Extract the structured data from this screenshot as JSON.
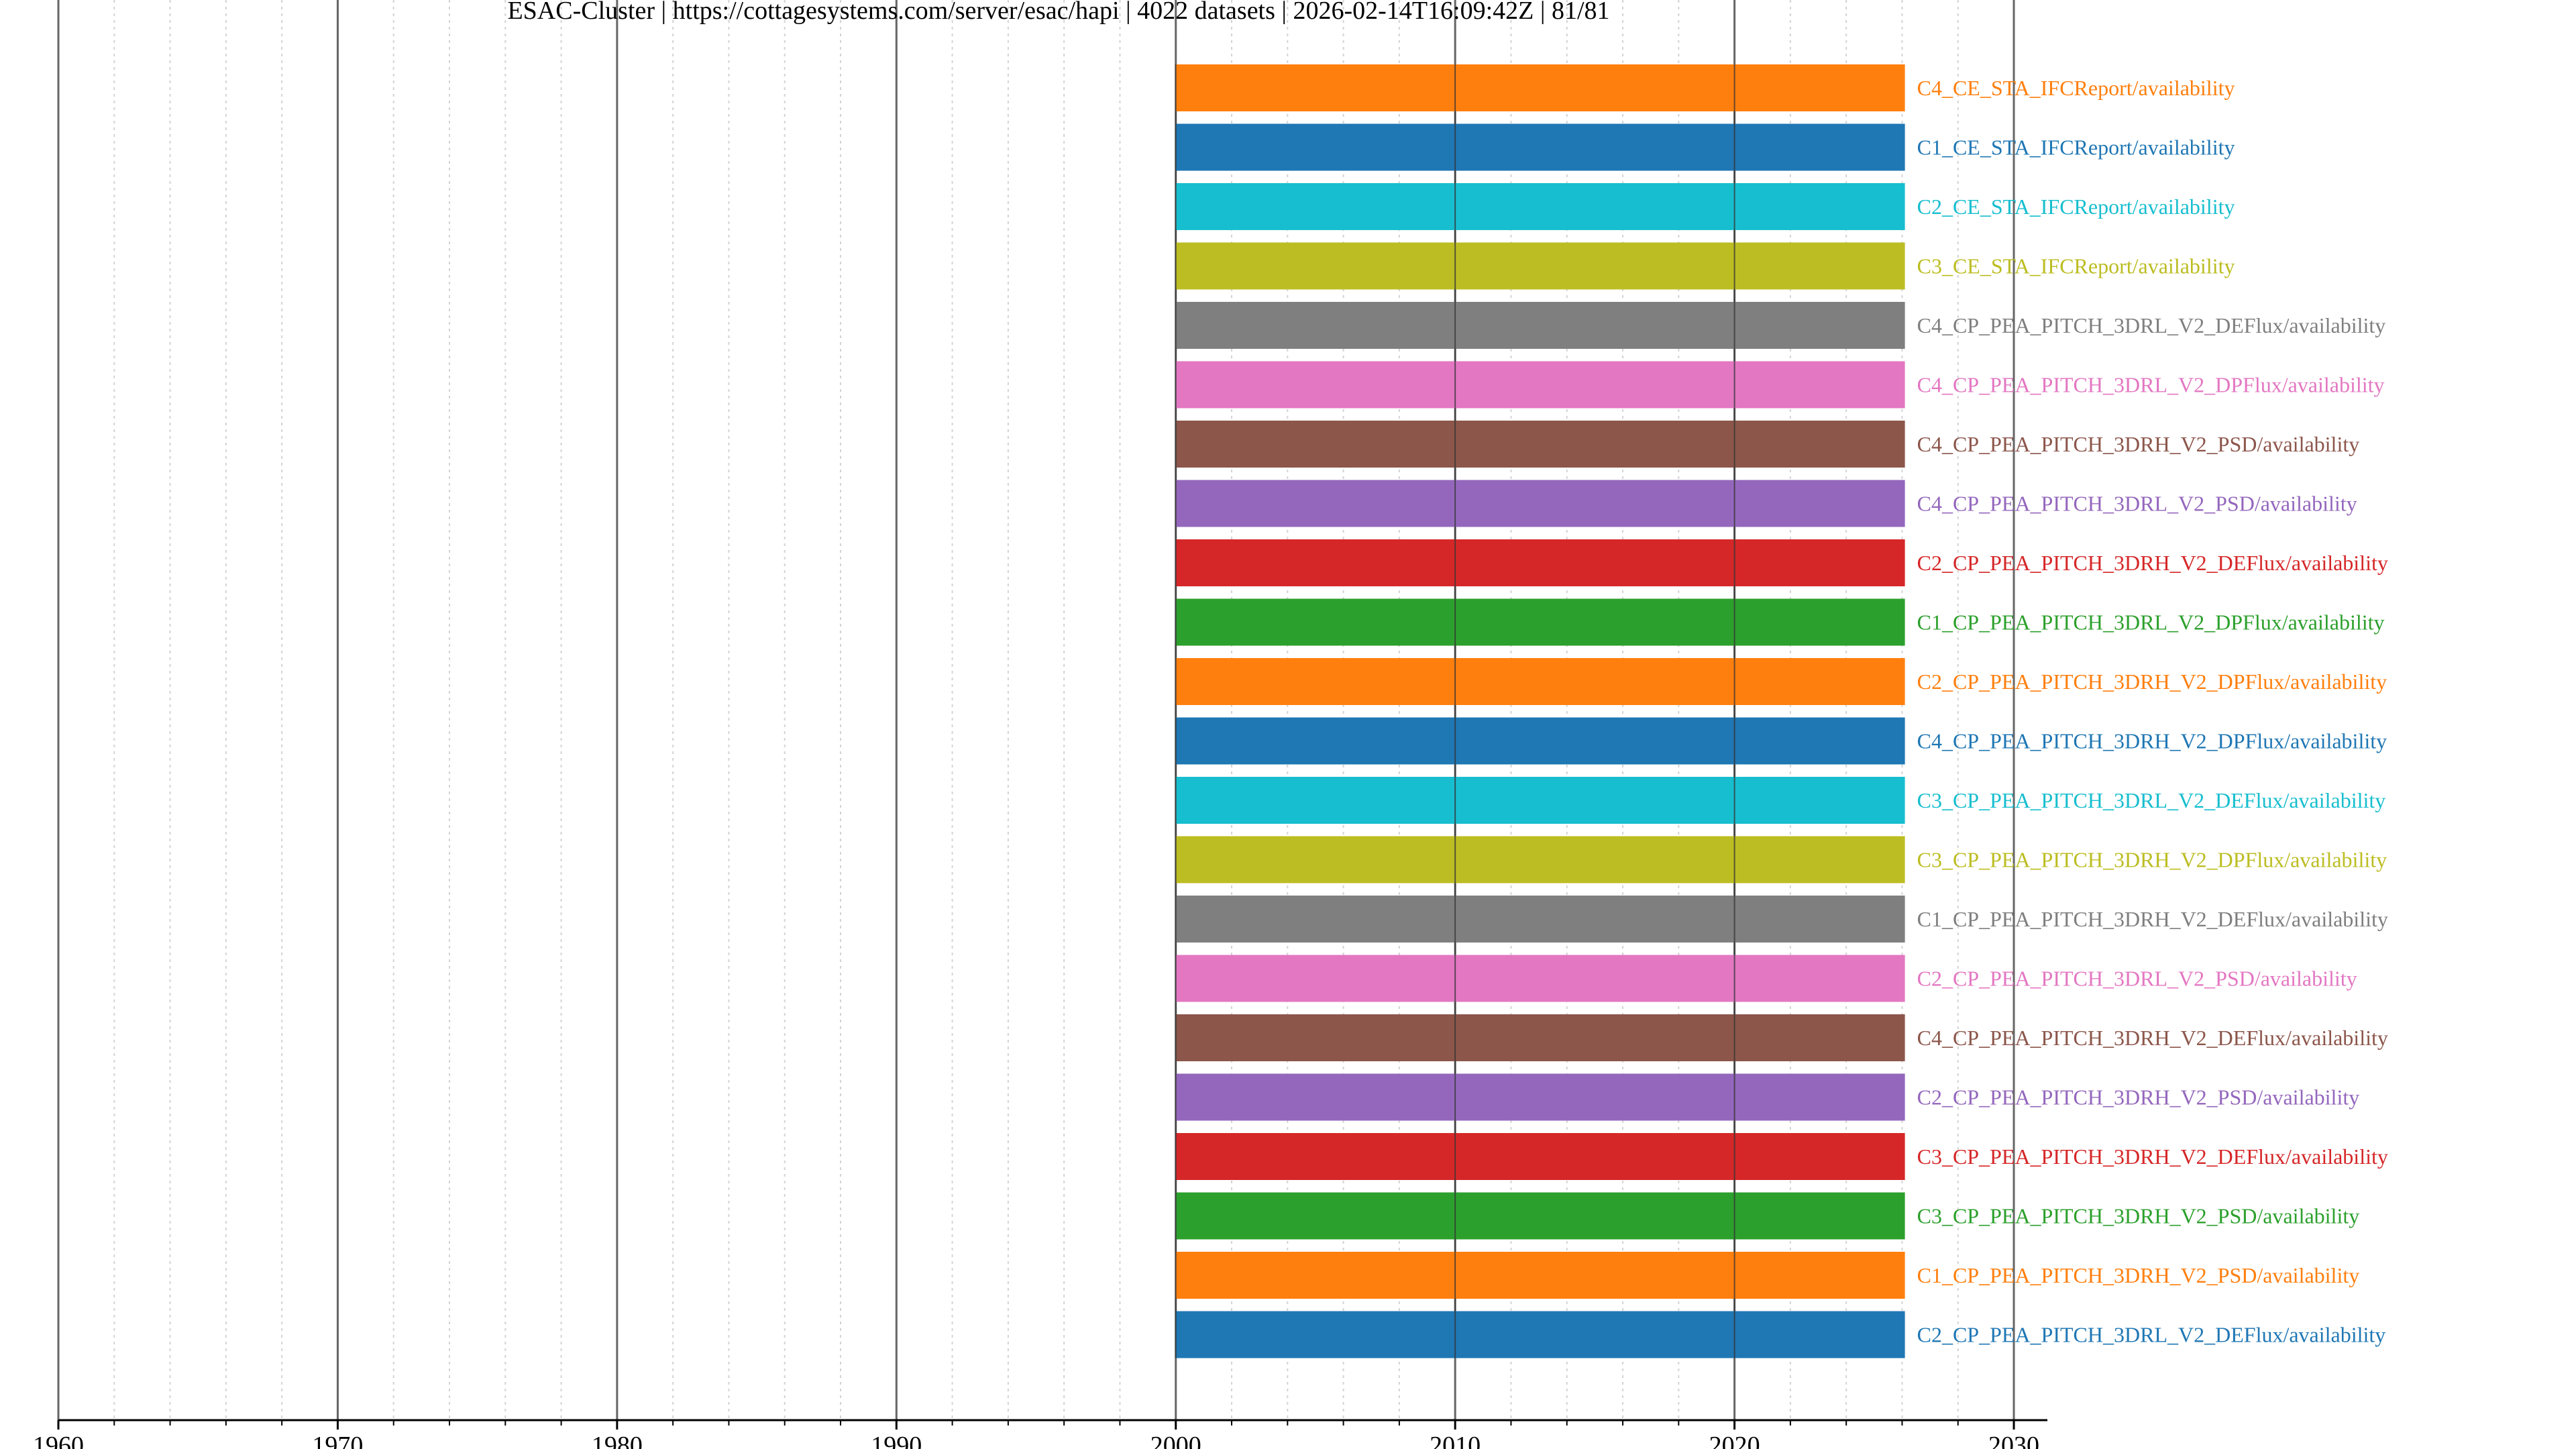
{
  "chart_data": {
    "type": "bar",
    "orientation": "horizontal-timeline",
    "title": "ESAC-Cluster | https://cottagesystems.com/server/esac/hapi | 4022 datasets | 2026-02-14T16:09:42Z | 81/81",
    "xlim": [
      1960,
      2031.2
    ],
    "x_ticks": [
      "1960",
      "1970",
      "1980",
      "1990",
      "2000",
      "2010",
      "2020",
      "2030"
    ],
    "x_major_step": 10,
    "x_minor_step": 2,
    "grid": {
      "major": true,
      "minor": true
    },
    "series": [
      {
        "name": "C4_CE_STA_IFCReport/availability",
        "start": 2000,
        "end": 2026.1,
        "color": "#ff7f0e"
      },
      {
        "name": "C1_CE_STA_IFCReport/availability",
        "start": 2000,
        "end": 2026.1,
        "color": "#1f77b4"
      },
      {
        "name": "C2_CE_STA_IFCReport/availability",
        "start": 2000,
        "end": 2026.1,
        "color": "#17becf"
      },
      {
        "name": "C3_CE_STA_IFCReport/availability",
        "start": 2000,
        "end": 2026.1,
        "color": "#bcbd22"
      },
      {
        "name": "C4_CP_PEA_PITCH_3DRL_V2_DEFlux/availability",
        "start": 2000,
        "end": 2026.1,
        "color": "#7f7f7f"
      },
      {
        "name": "C4_CP_PEA_PITCH_3DRL_V2_DPFlux/availability",
        "start": 2000,
        "end": 2026.1,
        "color": "#e377c2"
      },
      {
        "name": "C4_CP_PEA_PITCH_3DRH_V2_PSD/availability",
        "start": 2000,
        "end": 2026.1,
        "color": "#8c564b"
      },
      {
        "name": "C4_CP_PEA_PITCH_3DRL_V2_PSD/availability",
        "start": 2000,
        "end": 2026.1,
        "color": "#9467bd"
      },
      {
        "name": "C2_CP_PEA_PITCH_3DRH_V2_DEFlux/availability",
        "start": 2000,
        "end": 2026.1,
        "color": "#d62728"
      },
      {
        "name": "C1_CP_PEA_PITCH_3DRL_V2_DPFlux/availability",
        "start": 2000,
        "end": 2026.1,
        "color": "#2ca02c"
      },
      {
        "name": "C2_CP_PEA_PITCH_3DRH_V2_DPFlux/availability",
        "start": 2000,
        "end": 2026.1,
        "color": "#ff7f0e"
      },
      {
        "name": "C4_CP_PEA_PITCH_3DRH_V2_DPFlux/availability",
        "start": 2000,
        "end": 2026.1,
        "color": "#1f77b4"
      },
      {
        "name": "C3_CP_PEA_PITCH_3DRL_V2_DEFlux/availability",
        "start": 2000,
        "end": 2026.1,
        "color": "#17becf"
      },
      {
        "name": "C3_CP_PEA_PITCH_3DRH_V2_DPFlux/availability",
        "start": 2000,
        "end": 2026.1,
        "color": "#bcbd22"
      },
      {
        "name": "C1_CP_PEA_PITCH_3DRH_V2_DEFlux/availability",
        "start": 2000,
        "end": 2026.1,
        "color": "#7f7f7f"
      },
      {
        "name": "C2_CP_PEA_PITCH_3DRL_V2_PSD/availability",
        "start": 2000,
        "end": 2026.1,
        "color": "#e377c2"
      },
      {
        "name": "C4_CP_PEA_PITCH_3DRH_V2_DEFlux/availability",
        "start": 2000,
        "end": 2026.1,
        "color": "#8c564b"
      },
      {
        "name": "C2_CP_PEA_PITCH_3DRH_V2_PSD/availability",
        "start": 2000,
        "end": 2026.1,
        "color": "#9467bd"
      },
      {
        "name": "C3_CP_PEA_PITCH_3DRH_V2_DEFlux/availability",
        "start": 2000,
        "end": 2026.1,
        "color": "#d62728"
      },
      {
        "name": "C3_CP_PEA_PITCH_3DRH_V2_PSD/availability",
        "start": 2000,
        "end": 2026.1,
        "color": "#2ca02c"
      },
      {
        "name": "C1_CP_PEA_PITCH_3DRH_V2_PSD/availability",
        "start": 2000,
        "end": 2026.1,
        "color": "#ff7f0e"
      },
      {
        "name": "C2_CP_PEA_PITCH_3DRL_V2_DEFlux/availability",
        "start": 2000,
        "end": 2026.1,
        "color": "#1f77b4"
      }
    ]
  }
}
